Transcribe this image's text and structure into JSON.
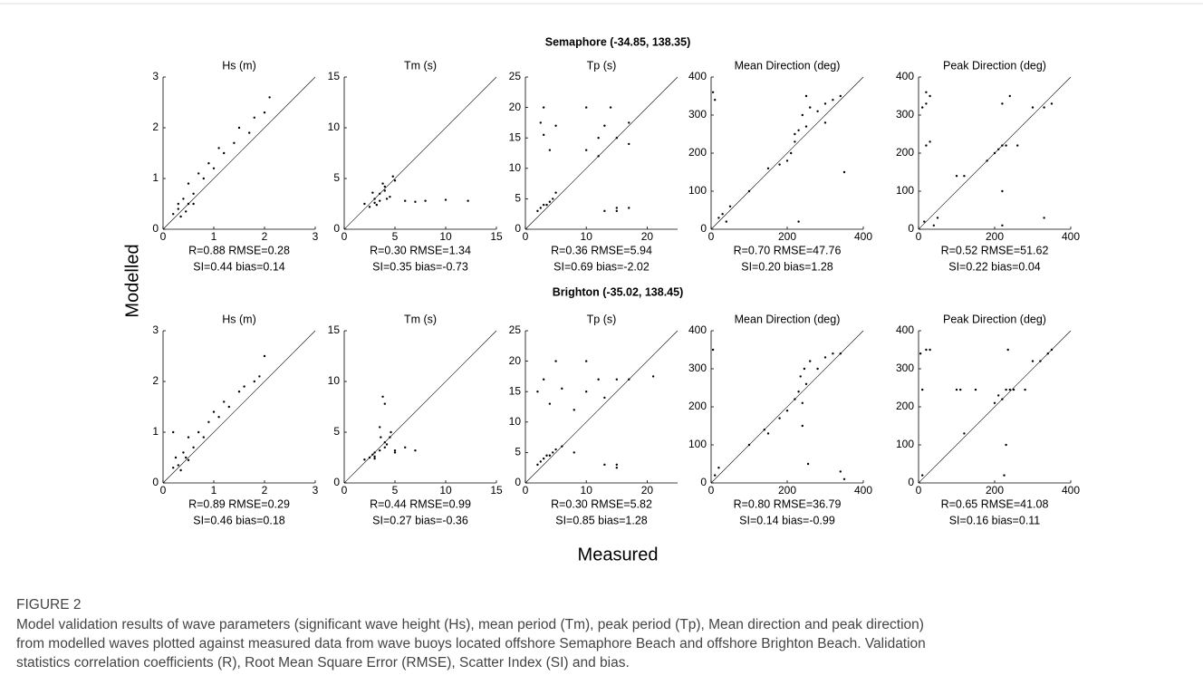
{
  "row_titles": [
    "Semaphore (-34.85, 138.35)",
    "Brighton (-35.02, 138.45)"
  ],
  "y_label": "Modelled",
  "x_label": "Measured",
  "figure": {
    "label": "FIGURE 2",
    "caption": [
      "Model validation results of wave parameters (significant wave height (Hs), mean period (Tm), peak period (Tp), Mean direction and peak direction)",
      "from modelled waves plotted against measured data from wave buoys located offshore Semaphore Beach and offshore Brighton Beach. Validation",
      "statistics correlation coefficients (R), Root Mean Square Error (RMSE), Scatter Index (SI) and bias."
    ]
  },
  "chart_data": [
    {
      "type": "scatter",
      "title": "Hs (m)",
      "color": "#000000",
      "xlim": [
        0,
        3
      ],
      "ylim": [
        0,
        3
      ],
      "xticks": [
        0,
        1,
        2,
        3
      ],
      "yticks": [
        0,
        1,
        2,
        3
      ],
      "x": [
        0.2,
        0.3,
        0.35,
        0.4,
        0.5,
        0.5,
        0.6,
        0.7,
        0.8,
        0.9,
        1.0,
        1.1,
        1.2,
        1.4,
        1.5,
        1.7,
        1.8,
        2.0,
        2.1,
        0.3,
        0.45,
        0.6
      ],
      "values": [
        0.3,
        0.4,
        0.25,
        0.6,
        0.5,
        0.9,
        0.7,
        1.1,
        1.0,
        1.3,
        1.2,
        1.6,
        1.5,
        1.7,
        2.0,
        1.9,
        2.2,
        2.3,
        2.6,
        0.5,
        0.35,
        0.5
      ],
      "stats": [
        "R=0.88 RMSE=0.28",
        "SI=0.44 bias=0.14"
      ]
    },
    {
      "type": "scatter",
      "title": "Tm (s)",
      "color": "#000000",
      "xlim": [
        0,
        15
      ],
      "ylim": [
        0,
        15
      ],
      "xticks": [
        0,
        5,
        10,
        15
      ],
      "yticks": [
        0,
        5,
        10,
        15
      ],
      "x": [
        2,
        2.5,
        3,
        3,
        3.5,
        3.5,
        4,
        4,
        4.5,
        5,
        2.8,
        3.2,
        3.8,
        4.2,
        6,
        7,
        8,
        10,
        12.2,
        4.8
      ],
      "values": [
        2.5,
        2.2,
        3,
        2.6,
        3.5,
        2.8,
        3.8,
        4.2,
        3.2,
        4.8,
        3.6,
        2.4,
        4.5,
        3,
        2.8,
        2.7,
        2.8,
        2.9,
        2.8,
        5.2
      ],
      "stats": [
        "R=0.30 RMSE=1.34",
        "SI=0.35 bias=-0.73"
      ]
    },
    {
      "type": "scatter",
      "title": "Tp (s)",
      "color": "#000000",
      "xlim": [
        0,
        25
      ],
      "ylim": [
        0,
        25
      ],
      "xticks": [
        0,
        10,
        20
      ],
      "yticks": [
        0,
        5,
        10,
        15,
        20,
        25
      ],
      "x": [
        2,
        2.5,
        3,
        3.5,
        4,
        4.5,
        5,
        3,
        2.5,
        4,
        10,
        12,
        12,
        13,
        14,
        15,
        15,
        17,
        17,
        13,
        15,
        17,
        3,
        5,
        10
      ],
      "values": [
        3,
        3.5,
        4,
        4,
        4.5,
        5,
        6,
        15.5,
        17.5,
        13,
        13,
        15,
        12,
        17,
        20,
        15,
        3.5,
        17.5,
        14,
        3,
        3,
        3.5,
        20,
        17,
        20
      ],
      "stats": [
        "R=0.36 RMSE=5.94",
        "SI=0.69 bias=-2.02"
      ]
    },
    {
      "type": "scatter",
      "title": "Mean Direction (deg)",
      "color": "#000000",
      "xlim": [
        0,
        400
      ],
      "ylim": [
        0,
        400
      ],
      "xticks": [
        0,
        200,
        400
      ],
      "yticks": [
        0,
        100,
        200,
        300,
        400
      ],
      "x": [
        20,
        30,
        40,
        10,
        50,
        100,
        150,
        180,
        200,
        210,
        220,
        220,
        230,
        240,
        250,
        260,
        280,
        300,
        320,
        340,
        230,
        250,
        350,
        5,
        300
      ],
      "values": [
        30,
        40,
        20,
        340,
        60,
        100,
        160,
        170,
        180,
        200,
        230,
        250,
        260,
        300,
        270,
        320,
        310,
        330,
        340,
        350,
        20,
        350,
        150,
        360,
        280
      ],
      "stats": [
        "R=0.70 RMSE=47.76",
        "SI=0.20 bias=1.28"
      ]
    },
    {
      "type": "scatter",
      "title": "Peak Direction (deg)",
      "color": "#000000",
      "xlim": [
        0,
        400
      ],
      "ylim": [
        0,
        400
      ],
      "xticks": [
        0,
        200,
        400
      ],
      "yticks": [
        0,
        100,
        200,
        300,
        400
      ],
      "x": [
        10,
        20,
        30,
        40,
        15,
        20,
        30,
        50,
        100,
        180,
        200,
        210,
        220,
        220,
        220,
        230,
        240,
        260,
        300,
        330,
        350,
        220,
        330,
        120,
        20
      ],
      "values": [
        320,
        330,
        350,
        10,
        20,
        220,
        230,
        30,
        140,
        180,
        200,
        210,
        220,
        10,
        330,
        220,
        350,
        220,
        320,
        320,
        330,
        100,
        30,
        140,
        360
      ],
      "stats": [
        "R=0.52 RMSE=51.62",
        "SI=0.22 bias=0.04"
      ]
    },
    {
      "type": "scatter",
      "title": "Hs (m)",
      "color": "#000000",
      "xlim": [
        0,
        3
      ],
      "ylim": [
        0,
        3
      ],
      "xticks": [
        0,
        1,
        2,
        3
      ],
      "yticks": [
        0,
        1,
        2,
        3
      ],
      "x": [
        0.2,
        0.25,
        0.3,
        0.4,
        0.5,
        0.5,
        0.6,
        0.7,
        0.8,
        0.9,
        1.0,
        1.1,
        1.2,
        1.3,
        1.5,
        1.6,
        1.8,
        1.9,
        2.0,
        0.35,
        0.45,
        0.2
      ],
      "values": [
        0.3,
        0.5,
        0.35,
        0.6,
        0.45,
        0.9,
        0.7,
        1.0,
        0.9,
        1.2,
        1.4,
        1.3,
        1.6,
        1.5,
        1.8,
        1.9,
        2.0,
        2.1,
        2.5,
        0.25,
        0.5,
        1.0
      ],
      "stats": [
        "R=0.89 RMSE=0.29",
        "SI=0.46 bias=0.18"
      ]
    },
    {
      "type": "scatter",
      "title": "Tm (s)",
      "color": "#000000",
      "xlim": [
        0,
        15
      ],
      "ylim": [
        0,
        15
      ],
      "xticks": [
        0,
        5,
        10,
        15
      ],
      "yticks": [
        0,
        5,
        10,
        15
      ],
      "x": [
        2,
        2.5,
        3,
        3,
        3.5,
        4,
        4,
        4.5,
        5,
        3.5,
        3.8,
        4,
        5,
        6,
        7,
        3,
        2.8,
        4.2,
        3.6,
        4.6
      ],
      "values": [
        2.3,
        2.5,
        3,
        2.6,
        3.2,
        4,
        3.5,
        4.5,
        3,
        5.5,
        8.5,
        7.8,
        3.2,
        3.5,
        3.2,
        2.4,
        2.8,
        3.8,
        4.5,
        5
      ],
      "stats": [
        "R=0.44 RMSE=0.99",
        "SI=0.27 bias=-0.36"
      ]
    },
    {
      "type": "scatter",
      "title": "Tp (s)",
      "color": "#000000",
      "xlim": [
        0,
        25
      ],
      "ylim": [
        0,
        25
      ],
      "xticks": [
        0,
        10,
        20
      ],
      "yticks": [
        0,
        5,
        10,
        15,
        20,
        25
      ],
      "x": [
        2,
        2.5,
        3,
        3.5,
        4,
        4.5,
        5,
        6,
        2,
        3,
        4,
        6,
        8,
        10,
        12,
        13,
        15,
        15,
        17,
        13,
        15,
        10,
        21,
        5,
        8
      ],
      "values": [
        3,
        3.5,
        4,
        4.5,
        4.5,
        5,
        5.5,
        6,
        15,
        17,
        13,
        15.5,
        12,
        15,
        17,
        14,
        17,
        3,
        17,
        3,
        2.5,
        20,
        17.5,
        20,
        5
      ],
      "stats": [
        "R=0.30 RMSE=5.82",
        "SI=0.85 bias=1.28"
      ]
    },
    {
      "type": "scatter",
      "title": "Mean Direction (deg)",
      "color": "#000000",
      "xlim": [
        0,
        400
      ],
      "ylim": [
        0,
        400
      ],
      "xticks": [
        0,
        200,
        400
      ],
      "yticks": [
        0,
        100,
        200,
        300,
        400
      ],
      "x": [
        10,
        20,
        5,
        100,
        140,
        180,
        200,
        220,
        230,
        235,
        240,
        245,
        250,
        260,
        280,
        300,
        320,
        340,
        350,
        255,
        340,
        240,
        150
      ],
      "values": [
        20,
        40,
        350,
        100,
        140,
        170,
        190,
        220,
        240,
        280,
        210,
        300,
        260,
        320,
        300,
        330,
        340,
        340,
        10,
        50,
        30,
        150,
        130
      ],
      "stats": [
        "R=0.80 RMSE=36.79",
        "SI=0.14 bias=-0.99"
      ]
    },
    {
      "type": "scatter",
      "title": "Peak Direction (deg)",
      "color": "#000000",
      "xlim": [
        0,
        400
      ],
      "ylim": [
        0,
        400
      ],
      "xticks": [
        0,
        200,
        400
      ],
      "yticks": [
        0,
        100,
        200,
        300,
        400
      ],
      "x": [
        5,
        20,
        30,
        10,
        120,
        110,
        150,
        200,
        210,
        220,
        230,
        240,
        250,
        280,
        300,
        320,
        340,
        350,
        230,
        225,
        235,
        100,
        10
      ],
      "values": [
        340,
        350,
        350,
        245,
        130,
        245,
        245,
        210,
        230,
        220,
        245,
        245,
        245,
        245,
        320,
        320,
        340,
        350,
        100,
        20,
        350,
        245,
        20
      ],
      "stats": [
        "R=0.65 RMSE=41.08",
        "SI=0.16 bias=0.11"
      ]
    }
  ]
}
